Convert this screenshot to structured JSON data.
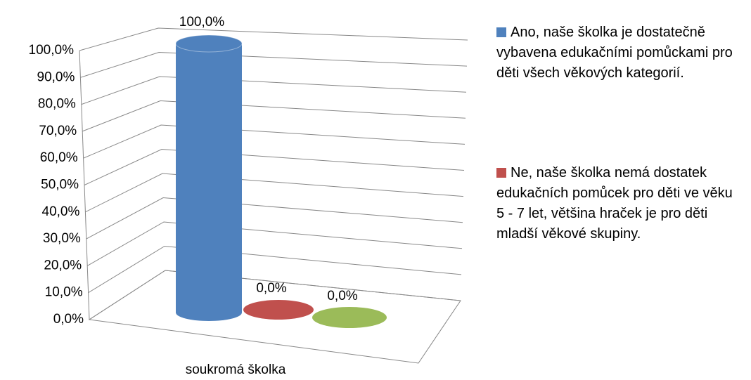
{
  "chart_data": {
    "type": "bar",
    "categories": [
      "soukromá školka"
    ],
    "series": [
      {
        "name": "Ano, naše školka je dostatečně vybavena edukačními pomůckami pro děti všech věkových kategorií.",
        "color": "#4f81bd",
        "values": [
          100
        ],
        "value_labels": [
          "100,0%"
        ]
      },
      {
        "name": "Ne, naše školka nemá dostatek edukačních pomůcek pro děti ve věku 5 - 7 let, většina hraček je pro děti mladší věkové skupiny.",
        "color": "#c0504d",
        "values": [
          0
        ],
        "value_labels": [
          "0,0%"
        ]
      },
      {
        "name": null,
        "color": "#9bbb59",
        "values": [
          0
        ],
        "value_labels": [
          "0,0%"
        ]
      }
    ],
    "ylim": [
      0,
      100
    ],
    "yticks": [
      {
        "value": 0,
        "label": "0,0%"
      },
      {
        "value": 10,
        "label": "10,0%"
      },
      {
        "value": 20,
        "label": "20,0%"
      },
      {
        "value": 30,
        "label": "30,0%"
      },
      {
        "value": 40,
        "label": "40,0%"
      },
      {
        "value": 50,
        "label": "50,0%"
      },
      {
        "value": 60,
        "label": "60,0%"
      },
      {
        "value": 70,
        "label": "70,0%"
      },
      {
        "value": 80,
        "label": "80,0%"
      },
      {
        "value": 90,
        "label": "90,0%"
      },
      {
        "value": 100,
        "label": "100,0%"
      }
    ],
    "grid": true,
    "legend": "right"
  }
}
